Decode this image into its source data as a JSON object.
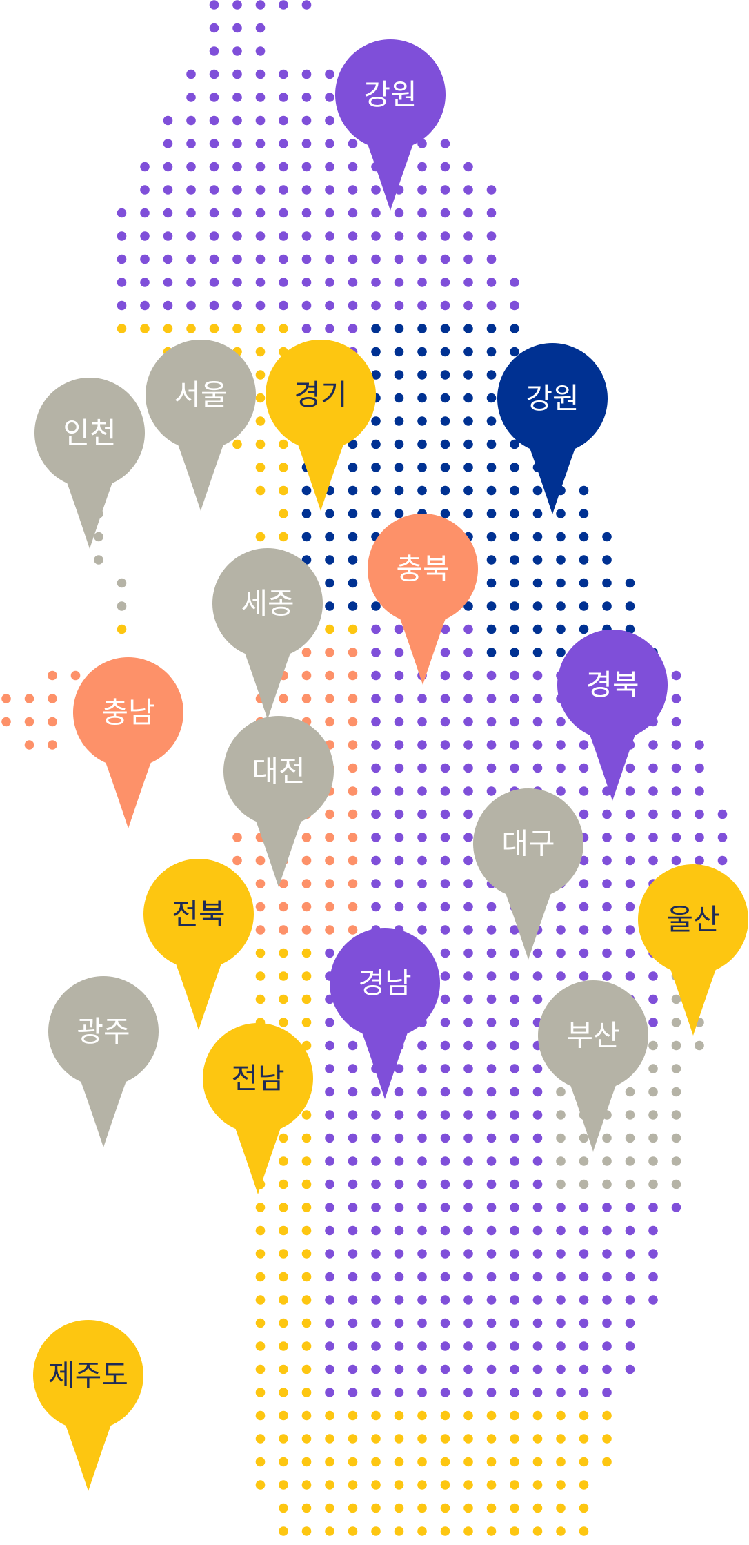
{
  "colors": {
    "purple": "#7f4fd9",
    "navy": "#003192",
    "gray": "#b5b3a6",
    "yellow": "#fdc611",
    "coral": "#fd9169",
    "label_light": "#ffffff",
    "label_dark": "#1e2b57"
  },
  "regions": [
    {
      "id": "gangwon-north",
      "label": "강원",
      "color": "purple"
    },
    {
      "id": "incheon",
      "label": "인천",
      "color": "gray"
    },
    {
      "id": "seoul",
      "label": "서울",
      "color": "gray"
    },
    {
      "id": "gyeonggi",
      "label": "경기",
      "color": "yellow"
    },
    {
      "id": "gangwon",
      "label": "강원",
      "color": "navy"
    },
    {
      "id": "chungbuk",
      "label": "충북",
      "color": "coral"
    },
    {
      "id": "sejong",
      "label": "세종",
      "color": "gray"
    },
    {
      "id": "chungnam",
      "label": "충남",
      "color": "coral"
    },
    {
      "id": "gyeongbuk",
      "label": "경북",
      "color": "purple"
    },
    {
      "id": "daejeon",
      "label": "대전",
      "color": "gray"
    },
    {
      "id": "daegu",
      "label": "대구",
      "color": "gray"
    },
    {
      "id": "jeonbuk",
      "label": "전북",
      "color": "yellow"
    },
    {
      "id": "ulsan",
      "label": "울산",
      "color": "yellow"
    },
    {
      "id": "gyeongnam",
      "label": "경남",
      "color": "purple"
    },
    {
      "id": "gwangju",
      "label": "광주",
      "color": "gray"
    },
    {
      "id": "busan",
      "label": "부산",
      "color": "gray"
    },
    {
      "id": "jeonnam",
      "label": "전남",
      "color": "yellow"
    },
    {
      "id": "jeju",
      "label": "제주도",
      "color": "yellow"
    }
  ]
}
